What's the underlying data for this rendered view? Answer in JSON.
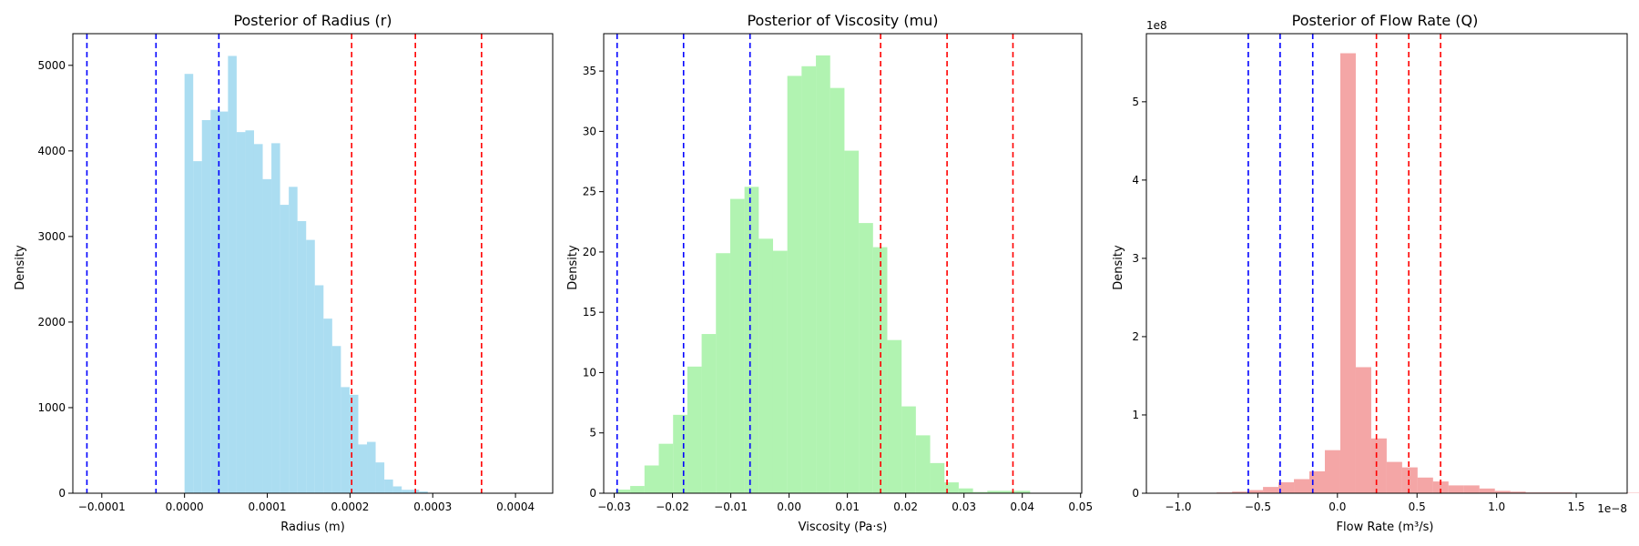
{
  "chart_data": [
    {
      "type": "bar",
      "title": "Posterior of Radius (r)",
      "xlabel": "Radius (m)",
      "ylabel": "Density",
      "offset_text": "",
      "color": "#87ceeb",
      "xlim": [
        -0.000135,
        0.000445
      ],
      "ylim": [
        0,
        5370
      ],
      "xticks": [
        {
          "v": -0.0001,
          "label": "−0.0001"
        },
        {
          "v": 0.0,
          "label": "0.0000"
        },
        {
          "v": 0.0001,
          "label": "0.0001"
        },
        {
          "v": 0.0002,
          "label": "0.0002"
        },
        {
          "v": 0.0003,
          "label": "0.0003"
        },
        {
          "v": 0.0004,
          "label": "0.0004"
        }
      ],
      "yticks": [
        {
          "v": 0,
          "label": "0"
        },
        {
          "v": 1000,
          "label": "1000"
        },
        {
          "v": 2000,
          "label": "2000"
        },
        {
          "v": 3000,
          "label": "3000"
        },
        {
          "v": 4000,
          "label": "4000"
        },
        {
          "v": 5000,
          "label": "5000"
        }
      ],
      "bins": {
        "start": 0.0,
        "width": 1.05e-05,
        "values": [
          4900,
          3880,
          4360,
          4480,
          4460,
          5110,
          4220,
          4240,
          4080,
          3670,
          4090,
          3370,
          3580,
          3180,
          2960,
          2430,
          2040,
          1720,
          1240,
          1150,
          570,
          600,
          360,
          160,
          80,
          40,
          40,
          20
        ]
      },
      "vlines": [
        {
          "x": -0.000118,
          "color": "#0000ff"
        },
        {
          "x": -3.45e-05,
          "color": "#0000ff"
        },
        {
          "x": 4.15e-05,
          "color": "#0000ff"
        },
        {
          "x": 0.000202,
          "color": "#ff0000"
        },
        {
          "x": 0.000279,
          "color": "#ff0000"
        },
        {
          "x": 0.000359,
          "color": "#ff0000"
        }
      ]
    },
    {
      "type": "bar",
      "title": "Posterior of Viscosity (mu)",
      "xlabel": "Viscosity (Pa·s)",
      "ylabel": "Density",
      "offset_text": "",
      "color": "#90ee90",
      "xlim": [
        -0.0318,
        0.0502
      ],
      "ylim": [
        0,
        38.1
      ],
      "xticks": [
        {
          "v": -0.03,
          "label": "−0.03"
        },
        {
          "v": -0.02,
          "label": "−0.02"
        },
        {
          "v": -0.01,
          "label": "−0.01"
        },
        {
          "v": 0.0,
          "label": "0.00"
        },
        {
          "v": 0.01,
          "label": "0.01"
        },
        {
          "v": 0.02,
          "label": "0.02"
        },
        {
          "v": 0.03,
          "label": "0.03"
        },
        {
          "v": 0.04,
          "label": "0.04"
        },
        {
          "v": 0.05,
          "label": "0.05"
        }
      ],
      "yticks": [
        {
          "v": 0,
          "label": "0"
        },
        {
          "v": 5,
          "label": "5"
        },
        {
          "v": 10,
          "label": "10"
        },
        {
          "v": 15,
          "label": "15"
        },
        {
          "v": 20,
          "label": "20"
        },
        {
          "v": 25,
          "label": "25"
        },
        {
          "v": 30,
          "label": "30"
        },
        {
          "v": 35,
          "label": "35"
        }
      ],
      "bins": {
        "start": -0.0297,
        "width": 0.00245,
        "values": [
          0.3,
          0.6,
          2.3,
          4.1,
          6.5,
          10.5,
          13.2,
          19.9,
          24.4,
          25.4,
          21.1,
          20.1,
          34.6,
          35.4,
          36.3,
          33.6,
          28.4,
          22.4,
          20.4,
          12.7,
          7.2,
          4.8,
          2.5,
          0.9,
          0.4,
          0.1,
          0.2,
          0.2,
          0.2
        ]
      },
      "vlines": [
        {
          "x": -0.0295,
          "color": "#0000ff"
        },
        {
          "x": -0.0181,
          "color": "#0000ff"
        },
        {
          "x": -0.0067,
          "color": "#0000ff"
        },
        {
          "x": 0.0157,
          "color": "#ff0000"
        },
        {
          "x": 0.0271,
          "color": "#ff0000"
        },
        {
          "x": 0.0384,
          "color": "#ff0000"
        }
      ]
    },
    {
      "type": "bar",
      "title": "Posterior of Flow Rate (Q)",
      "xlabel": "Flow Rate (m³/s)",
      "ylabel": "Density",
      "offset_text": "1e8",
      "x_offset_text": "1e−8",
      "color": "#f08080",
      "xlim": [
        -1.2,
        1.82
      ],
      "ylim": [
        0,
        5.87
      ],
      "xticks": [
        {
          "v": -1.0,
          "label": "−1.0"
        },
        {
          "v": -0.5,
          "label": "−0.5"
        },
        {
          "v": 0.0,
          "label": "0.0"
        },
        {
          "v": 0.5,
          "label": "0.5"
        },
        {
          "v": 1.0,
          "label": "1.0"
        },
        {
          "v": 1.5,
          "label": "1.5"
        }
      ],
      "yticks": [
        {
          "v": 0,
          "label": "0"
        },
        {
          "v": 1,
          "label": "1"
        },
        {
          "v": 2,
          "label": "2"
        },
        {
          "v": 3,
          "label": "3"
        },
        {
          "v": 4,
          "label": "4"
        },
        {
          "v": 5,
          "label": "5"
        }
      ],
      "bins": {
        "start": -1.05,
        "width": 0.0971,
        "values": [
          0.005,
          0.005,
          0.005,
          0.01,
          0.02,
          0.04,
          0.08,
          0.14,
          0.18,
          0.28,
          0.55,
          5.62,
          1.61,
          0.7,
          0.4,
          0.33,
          0.2,
          0.15,
          0.1,
          0.1,
          0.06,
          0.03,
          0.02,
          0.01,
          0.01,
          0.01,
          0.005,
          0.005,
          0.005,
          0.005,
          0.005
        ]
      },
      "vlines": [
        {
          "x": -0.56,
          "color": "#0000ff"
        },
        {
          "x": -0.36,
          "color": "#0000ff"
        },
        {
          "x": -0.155,
          "color": "#0000ff"
        },
        {
          "x": 0.245,
          "color": "#ff0000"
        },
        {
          "x": 0.448,
          "color": "#ff0000"
        },
        {
          "x": 0.648,
          "color": "#ff0000"
        }
      ]
    }
  ]
}
